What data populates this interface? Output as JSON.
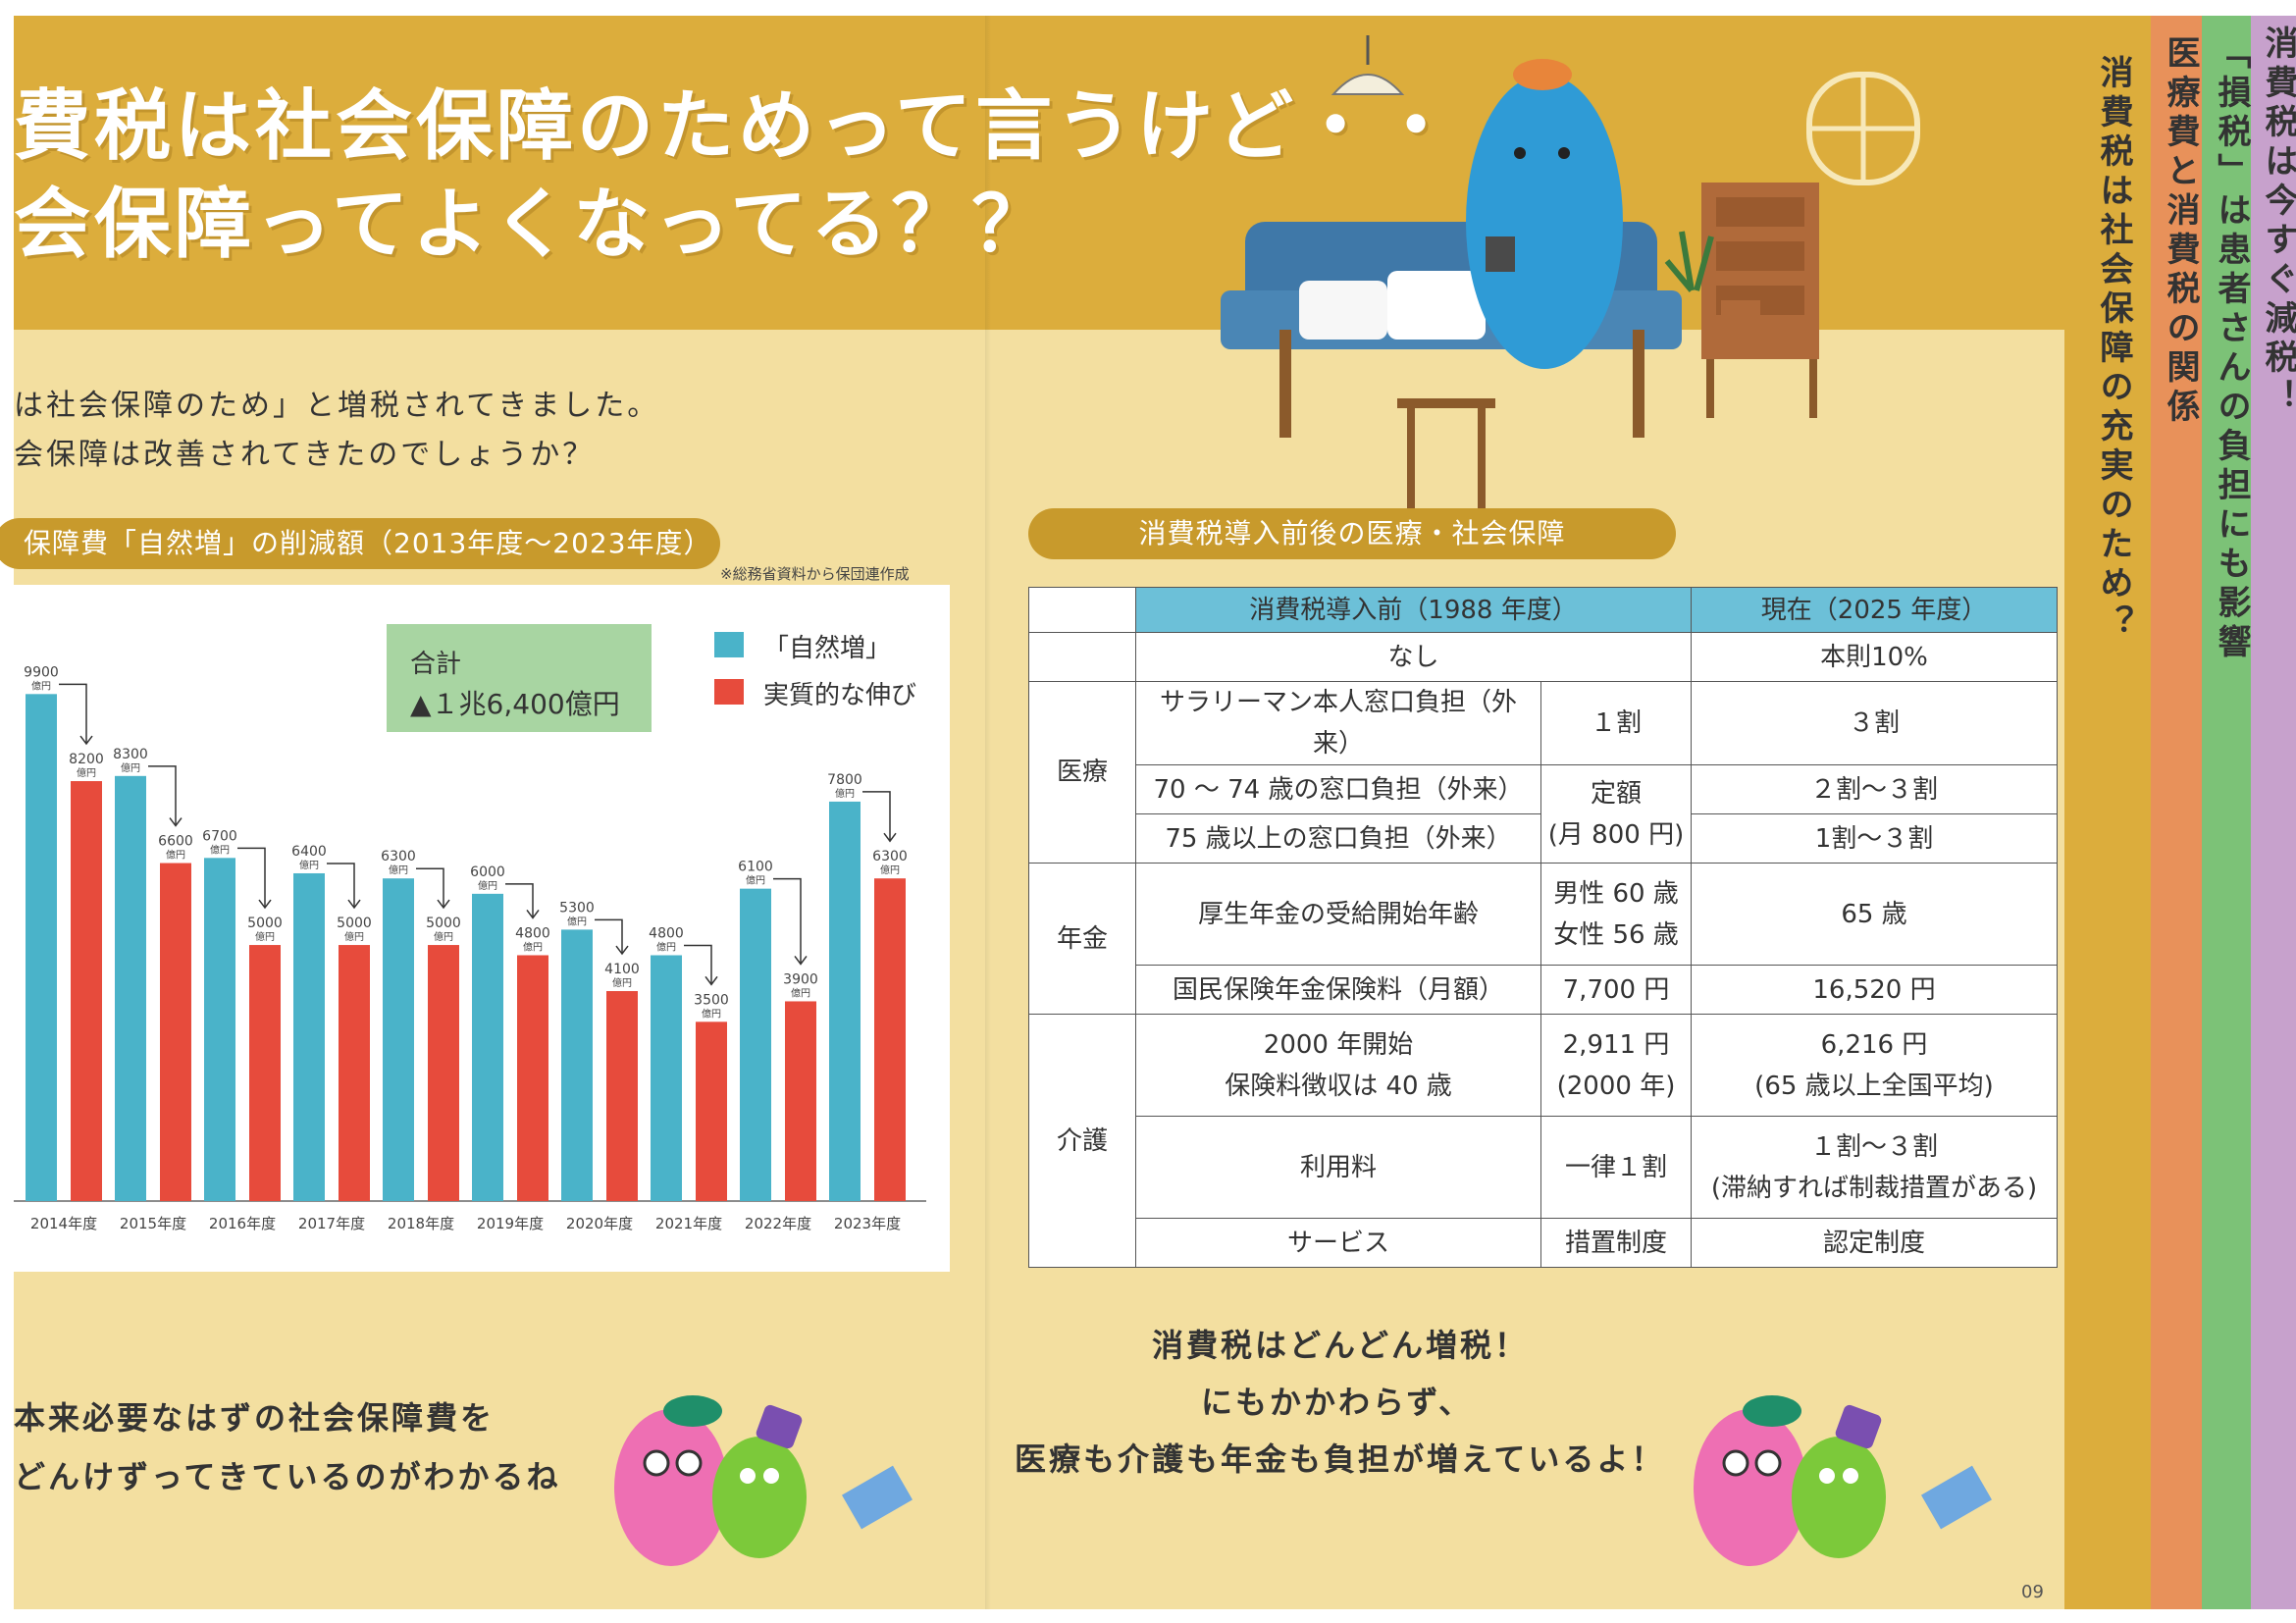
{
  "colors": {
    "band": "#dcad3c",
    "cream": "#f3dfa0",
    "teal": "#4ab3c9",
    "red": "#e74b3c",
    "header_cell": "#6cc0d8",
    "legend_box": "#a8d5a2",
    "pill": "#c89a2c"
  },
  "title": {
    "line1": "費税は社会保障のためって言うけど・・・",
    "line2": "会保障ってよくなってる？？"
  },
  "intro": {
    "line1": "は社会保障のため」と増税されてきました。",
    "line2": "会保障は改善されてきたのでしょうか？"
  },
  "left_pill": "保障費「自然増」の削減額（2013年度～2023年度）",
  "source": "※総務省資料から保団連作成",
  "chart_data": {
    "type": "bar",
    "categories": [
      "2014年度",
      "2015年度",
      "2016年度",
      "2017年度",
      "2018年度",
      "2019年度",
      "2020年度",
      "2021年度",
      "2022年度",
      "2023年度"
    ],
    "series": [
      {
        "name": "「自然増」",
        "values": [
          9900,
          8300,
          6700,
          6400,
          6300,
          6000,
          5300,
          4800,
          6100,
          7800
        ]
      },
      {
        "name": "実質的な伸び",
        "values": [
          8200,
          6600,
          5000,
          5000,
          5000,
          4800,
          4100,
          3500,
          3900,
          6300
        ]
      }
    ],
    "value_unit": "億円",
    "ylim": [
      0,
      10500
    ],
    "total_label": "合計",
    "total_value": "▲１兆6,400億円"
  },
  "right_pill": "消費税導入前後の医療・社会保障",
  "table": {
    "h_before": "消費税導入前（1988 年度）",
    "h_now": "現在（2025 年度）",
    "tax_before": "なし",
    "tax_now": "本則10%",
    "cat_medical": "医療",
    "cat_pension": "年金",
    "cat_care": "介護",
    "r1_item": "サラリーマン本人窓口負担（外来）",
    "r1_before": "１割",
    "r1_now": "３割",
    "r2_item": "70 ～ 74 歳の窓口負担（外来）",
    "r23_before_a": "定額",
    "r23_before_b": "(月 800 円)",
    "r2_now": "２割～３割",
    "r3_item": "75 歳以上の窓口負担（外来）",
    "r3_now": "1割～３割",
    "r4_item": "厚生年金の受給開始年齢",
    "r4_before_a": "男性 60 歳",
    "r4_before_b": "女性 56 歳",
    "r4_now": "65 歳",
    "r5_item": "国民保険年金保険料（月額）",
    "r5_before": "7,700 円",
    "r5_now": "16,520 円",
    "r6_item_a": "2000 年開始",
    "r6_item_b": "保険料徴収は 40 歳",
    "r6_before_a": "2,911 円",
    "r6_before_b": "(2000 年)",
    "r6_now_a": "6,216 円",
    "r6_now_b": "(65 歳以上全国平均)",
    "r7_item": "利用料",
    "r7_before": "一律１割",
    "r7_now_a": "１割～３割",
    "r7_now_b": "(滞納すれば制裁措置がある)",
    "r8_item": "サービス",
    "r8_before": "措置制度",
    "r8_now": "認定制度"
  },
  "left_bubble": {
    "line1": "本来必要なはずの社会保障費を",
    "line2": "どんけずってきているのがわかるね"
  },
  "right_bubble": {
    "line1": "消費税はどんどん増税！",
    "line2": "にもかかわらず、",
    "line3": "医療も介護も年金も負担が増えているよ！"
  },
  "tabs": [
    {
      "text": "消費税は社会保障の充実のため？",
      "color": "#dcad3c"
    },
    {
      "text": "医療費と消費税の関係",
      "color": "#e8915a"
    },
    {
      "text": "「損税」は患者さんの負担にも影響",
      "color": "#7cc277"
    },
    {
      "text": "消費税は今すぐ減税！",
      "color": "#c7a1cc"
    }
  ],
  "page_number": "09"
}
